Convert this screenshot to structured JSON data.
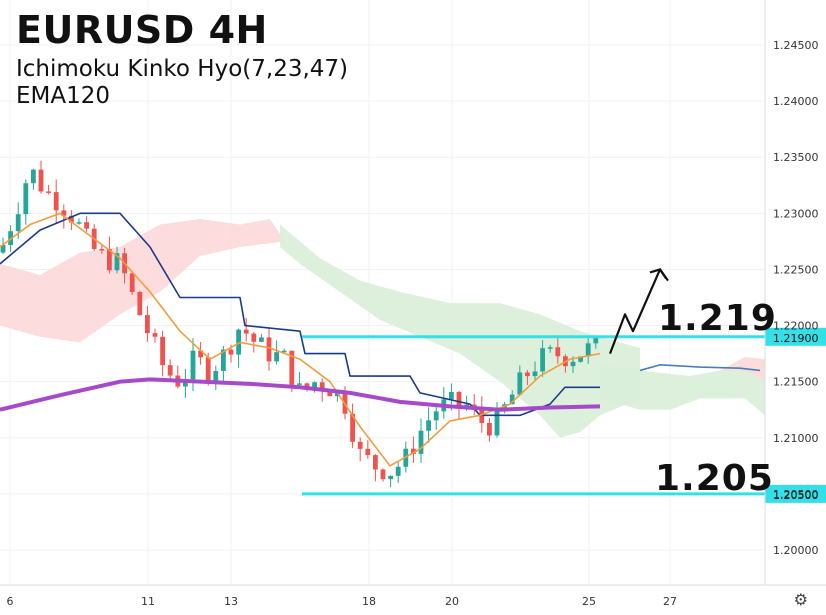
{
  "header": {
    "title": "EURUSD 4H",
    "indicator_line": "Ichimoku Kinko Hyo(7,23,47)",
    "ema_line": "EMA120"
  },
  "annotations": {
    "resistance_label": "1.219",
    "support_label": "1.205"
  },
  "colors": {
    "bull": "#26a69a",
    "bear": "#ef5350",
    "tenkan": "#f39c3c",
    "kijun": "#1a3a8a",
    "ema": "#a64ac9",
    "hline": "#33e0e8",
    "cloud_bull": "#d8eed8",
    "cloud_bear": "#fbd6d6"
  },
  "chart_data": {
    "type": "line",
    "title": "EURUSD 4H",
    "ylim": [
      1.1965,
      1.2492
    ],
    "y_ticks": [
      "1.24500",
      "1.24000",
      "1.23500",
      "1.23000",
      "1.22500",
      "1.22000",
      "1.21500",
      "1.21000",
      "1.20500",
      "1.20000"
    ],
    "x_ticks": [
      "6",
      "11",
      "13",
      "18",
      "20",
      "25",
      "27"
    ],
    "grid": true,
    "horizontal_lines": [
      {
        "value": 1.219,
        "label": "1.21900"
      },
      {
        "value": 1.205,
        "label": "1.20500"
      }
    ],
    "price_keypoints": [
      [
        0,
        1.2265
      ],
      [
        15,
        1.23
      ],
      [
        30,
        1.234
      ],
      [
        45,
        1.232
      ],
      [
        60,
        1.231
      ],
      [
        75,
        1.2295
      ],
      [
        90,
        1.227
      ],
      [
        105,
        1.226
      ],
      [
        120,
        1.2255
      ],
      [
        135,
        1.222
      ],
      [
        150,
        1.219
      ],
      [
        165,
        1.216
      ],
      [
        180,
        1.215
      ],
      [
        195,
        1.217
      ],
      [
        210,
        1.216
      ],
      [
        225,
        1.2175
      ],
      [
        240,
        1.22
      ],
      [
        255,
        1.2185
      ],
      [
        270,
        1.2175
      ],
      [
        285,
        1.217
      ],
      [
        300,
        1.214
      ],
      [
        315,
        1.215
      ],
      [
        330,
        1.2145
      ],
      [
        345,
        1.213
      ],
      [
        360,
        1.2085
      ],
      [
        375,
        1.2075
      ],
      [
        390,
        1.207
      ],
      [
        405,
        1.208
      ],
      [
        420,
        1.2105
      ],
      [
        435,
        1.2125
      ],
      [
        450,
        1.213
      ],
      [
        465,
        1.213
      ],
      [
        480,
        1.2115
      ],
      [
        495,
        1.211
      ],
      [
        510,
        1.2135
      ],
      [
        525,
        1.2155
      ],
      [
        540,
        1.217
      ],
      [
        555,
        1.2175
      ],
      [
        570,
        1.2172
      ],
      [
        585,
        1.2178
      ],
      [
        600,
        1.2182
      ]
    ],
    "series": [
      {
        "name": "",
        "points": [
          [
            0,
            1.2125
          ],
          [
            60,
            1.2138
          ],
          [
            120,
            1.215
          ],
          [
            150,
            1.2152
          ],
          [
            200,
            1.215
          ],
          [
            250,
            1.2148
          ],
          [
            300,
            1.2145
          ],
          [
            350,
            1.214
          ],
          [
            400,
            1.2132
          ],
          [
            450,
            1.2128
          ],
          [
            500,
            1.2125
          ],
          [
            550,
            1.2127
          ],
          [
            600,
            1.2128
          ]
        ]
      },
      {
        "name": "",
        "points": [
          [
            0,
            1.227
          ],
          [
            30,
            1.229
          ],
          [
            60,
            1.23
          ],
          [
            90,
            1.228
          ],
          [
            120,
            1.226
          ],
          [
            150,
            1.223
          ],
          [
            180,
            1.2195
          ],
          [
            210,
            1.217
          ],
          [
            240,
            1.2185
          ],
          [
            270,
            1.218
          ],
          [
            300,
            1.217
          ],
          [
            330,
            1.215
          ],
          [
            360,
            1.211
          ],
          [
            390,
            1.2075
          ],
          [
            420,
            1.209
          ],
          [
            450,
            1.2115
          ],
          [
            480,
            1.212
          ],
          [
            510,
            1.213
          ],
          [
            540,
            1.2155
          ],
          [
            570,
            1.217
          ],
          [
            600,
            1.2175
          ]
        ]
      },
      {
        "name": "",
        "points": [
          [
            0,
            1.2255
          ],
          [
            40,
            1.2285
          ],
          [
            80,
            1.23
          ],
          [
            120,
            1.23
          ],
          [
            150,
            1.227
          ],
          [
            180,
            1.2225
          ],
          [
            240,
            1.2225
          ],
          [
            245,
            1.22
          ],
          [
            300,
            1.2195
          ],
          [
            305,
            1.2175
          ],
          [
            345,
            1.2175
          ],
          [
            350,
            1.2155
          ],
          [
            410,
            1.2155
          ],
          [
            420,
            1.214
          ],
          [
            470,
            1.213
          ],
          [
            480,
            1.212
          ],
          [
            520,
            1.212
          ],
          [
            550,
            1.213
          ],
          [
            565,
            1.2145
          ],
          [
            600,
            1.2145
          ]
        ]
      },
      {
        "name": "",
        "points": [
          [
            640,
            1.216
          ],
          [
            660,
            1.2165
          ],
          [
            700,
            1.2163
          ],
          [
            740,
            1.2162
          ],
          [
            760,
            1.216
          ]
        ]
      }
    ],
    "projection": [
      [
        610,
        1.2175
      ],
      [
        625,
        1.221
      ],
      [
        633,
        1.2195
      ],
      [
        660,
        1.225
      ],
      [
        668,
        1.224
      ]
    ]
  },
  "footer": {
    "settings_icon": "gear-icon"
  }
}
